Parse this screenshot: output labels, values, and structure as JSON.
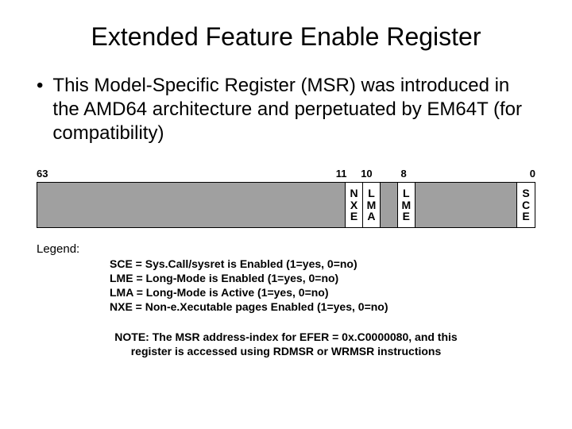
{
  "title": "Extended Feature Enable Register",
  "bullet": "This Model-Specific Register (MSR) was introduced in the AMD64 architecture and perpetuated by EM64T (for compatibility)",
  "register": {
    "bit_labels": {
      "b63": "63",
      "b11": "11",
      "b10": "10",
      "b8": "8",
      "b0": "0"
    },
    "fields": [
      {
        "name": "reserved-63-12",
        "width_pct": 62.0,
        "reserved": true,
        "lines": []
      },
      {
        "name": "nxe",
        "width_pct": 3.5,
        "reserved": false,
        "lines": [
          "N",
          "X",
          "E"
        ]
      },
      {
        "name": "lma",
        "width_pct": 3.5,
        "reserved": false,
        "lines": [
          "L",
          "M",
          "A"
        ]
      },
      {
        "name": "reserved-9",
        "width_pct": 3.5,
        "reserved": true,
        "lines": []
      },
      {
        "name": "lme",
        "width_pct": 3.5,
        "reserved": false,
        "lines": [
          "L",
          "M",
          "E"
        ]
      },
      {
        "name": "reserved-7-1",
        "width_pct": 20.5,
        "reserved": true,
        "lines": []
      },
      {
        "name": "sce",
        "width_pct": 3.5,
        "reserved": false,
        "lines": [
          "S",
          "C",
          "E"
        ]
      }
    ],
    "bit_label_positions_pct": {
      "b63": 0.0,
      "b11": 60.0,
      "b10": 65.0,
      "b8": 73.0,
      "b0": 99.0
    }
  },
  "legend": {
    "heading": "Legend:",
    "lines": [
      "SCE = Sys.Call/sysret is Enabled (1=yes, 0=no)",
      "LME = Long-Mode is Enabled (1=yes, 0=no)",
      "LMA = Long-Mode is Active (1=yes, 0=no)",
      "NXE = Non-e.Xecutable pages Enabled (1=yes, 0=no)"
    ]
  },
  "note": "NOTE: The MSR address-index for EFER = 0x.C0000080, and this register is accessed using RDMSR or WRMSR instructions",
  "colors": {
    "reserved_fill": "#a0a0a0",
    "named_fill": "#ffffff",
    "border": "#000000",
    "background": "#ffffff",
    "text": "#000000"
  }
}
